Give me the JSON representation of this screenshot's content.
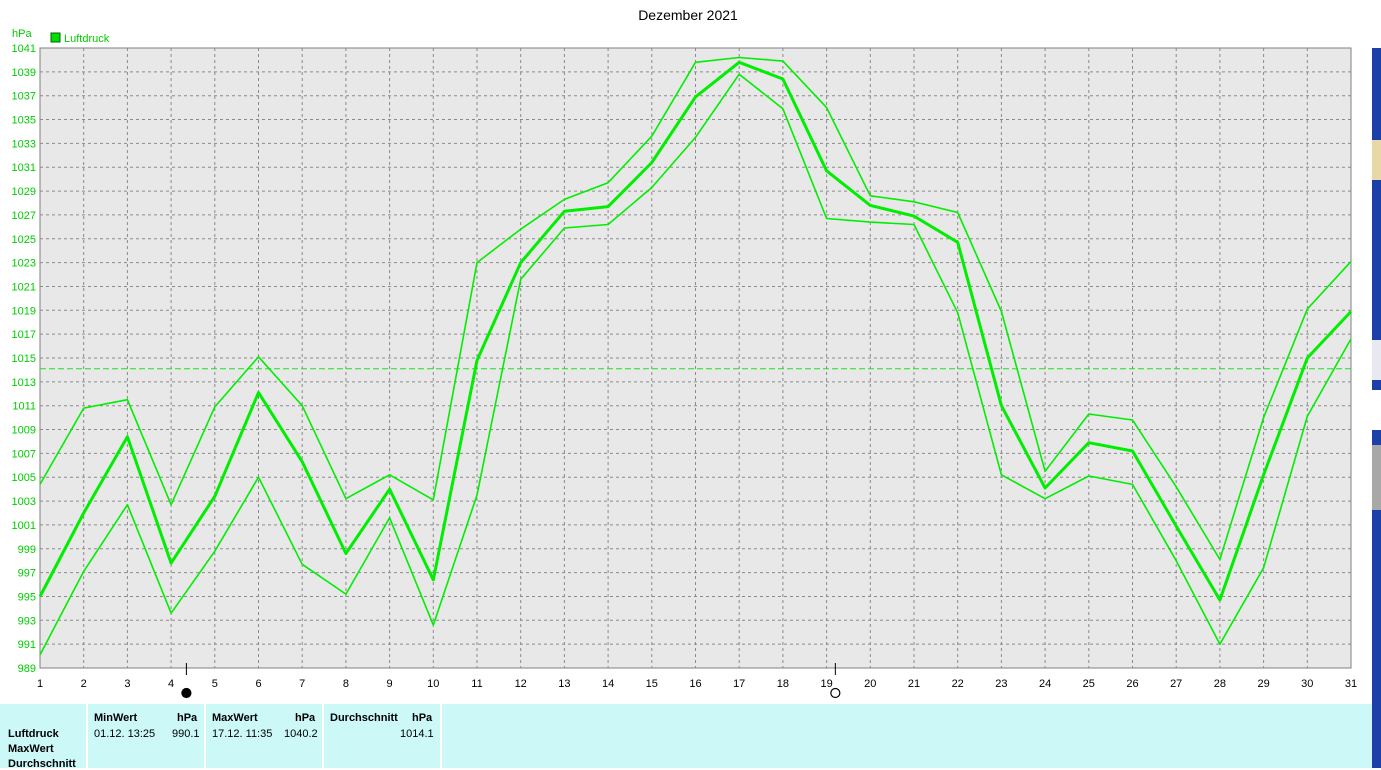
{
  "title": "Dezember 2021",
  "unit": "hPa",
  "legend": {
    "label": "Luftdruck",
    "color": "#00dd00"
  },
  "chart_data": {
    "type": "line",
    "title": "Dezember 2021",
    "ylabel": "hPa",
    "xlabel": "",
    "categories": [
      "1",
      "2",
      "3",
      "4",
      "5",
      "6",
      "7",
      "8",
      "9",
      "10",
      "11",
      "12",
      "13",
      "14",
      "15",
      "16",
      "17",
      "18",
      "19",
      "20",
      "21",
      "22",
      "23",
      "24",
      "25",
      "26",
      "27",
      "28",
      "29",
      "30",
      "31"
    ],
    "ylim": [
      989,
      1041
    ],
    "yticks": [
      989,
      991,
      993,
      995,
      997,
      999,
      1001,
      1003,
      1005,
      1007,
      1009,
      1011,
      1013,
      1015,
      1017,
      1019,
      1021,
      1023,
      1025,
      1027,
      1029,
      1031,
      1033,
      1035,
      1037,
      1039,
      1041
    ],
    "average_line": 1014.1,
    "grid": true,
    "legend_position": "top-left",
    "series": [
      {
        "name": "Luftdruck",
        "role": "mean",
        "values": [
          995.0,
          1002.0,
          1008.4,
          997.8,
          1003.4,
          1012.1,
          1006.3,
          998.6,
          1004.0,
          996.4,
          1014.8,
          1023.0,
          1027.3,
          1027.7,
          1031.4,
          1036.9,
          1039.8,
          1038.4,
          1030.7,
          1027.8,
          1026.9,
          1024.7,
          1011.0,
          1004.1,
          1007.9,
          1007.2,
          1000.9,
          994.7,
          1005.2,
          1015.0,
          1018.9
        ]
      },
      {
        "role": "max",
        "values": [
          1004.4,
          1010.8,
          1011.5,
          1002.7,
          1010.9,
          1015.1,
          1011.0,
          1003.2,
          1005.2,
          1003.1,
          1023.0,
          1025.8,
          1028.3,
          1029.7,
          1033.6,
          1039.8,
          1040.2,
          1039.9,
          1036.0,
          1028.6,
          1028.1,
          1027.2,
          1018.9,
          1005.5,
          1010.3,
          1009.8,
          1004.2,
          998.1,
          1010.0,
          1019.1,
          1023.1
        ]
      },
      {
        "role": "min",
        "values": [
          990.1,
          997.1,
          1002.7,
          993.6,
          998.8,
          1005.0,
          997.7,
          995.2,
          1001.6,
          992.6,
          1003.5,
          1021.6,
          1025.9,
          1026.2,
          1029.3,
          1033.5,
          1038.8,
          1035.9,
          1026.7,
          1026.4,
          1026.2,
          1018.8,
          1005.2,
          1003.2,
          1005.1,
          1004.4,
          998.0,
          991.0,
          997.4,
          1010.1,
          1016.6
        ]
      }
    ],
    "moon_markers": [
      {
        "day": 4.35,
        "phase": "new"
      },
      {
        "day": 19.2,
        "phase": "full"
      }
    ]
  },
  "stats": {
    "row_labels": [
      "Luftdruck",
      "MaxWert",
      "Durchschnitt"
    ],
    "min": {
      "header": "MinWert",
      "unit": "hPa",
      "when": "01.12.  13:25",
      "value": "990.1"
    },
    "max": {
      "header": "MaxWert",
      "unit": "hPa",
      "when": "17.12.  11:35",
      "value": "1040.2"
    },
    "avg": {
      "header": "Durchschnitt",
      "unit": "hPa",
      "value": "1014.1"
    }
  }
}
